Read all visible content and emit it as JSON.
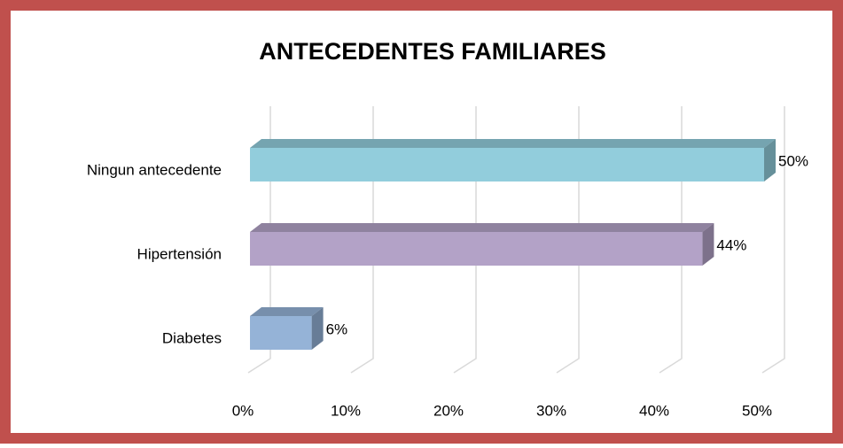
{
  "chart_data": {
    "type": "bar3d_horizontal",
    "title": "ANTECEDENTES FAMILIARES",
    "categories": [
      "Ningun antecedente",
      "Hipertensión",
      "Diabetes"
    ],
    "values": [
      50,
      44,
      6
    ],
    "value_labels": [
      "50%",
      "44%",
      "6%"
    ],
    "colors": [
      "#92cddc",
      "#b3a2c7",
      "#95b3d7"
    ],
    "xlim": [
      0,
      50
    ],
    "xticks": [
      {
        "value": 0,
        "label": "0%"
      },
      {
        "value": 10,
        "label": "10%"
      },
      {
        "value": 20,
        "label": "20%"
      },
      {
        "value": 30,
        "label": "30%"
      },
      {
        "value": 40,
        "label": "40%"
      },
      {
        "value": 50,
        "label": "50%"
      }
    ],
    "grid": true
  }
}
